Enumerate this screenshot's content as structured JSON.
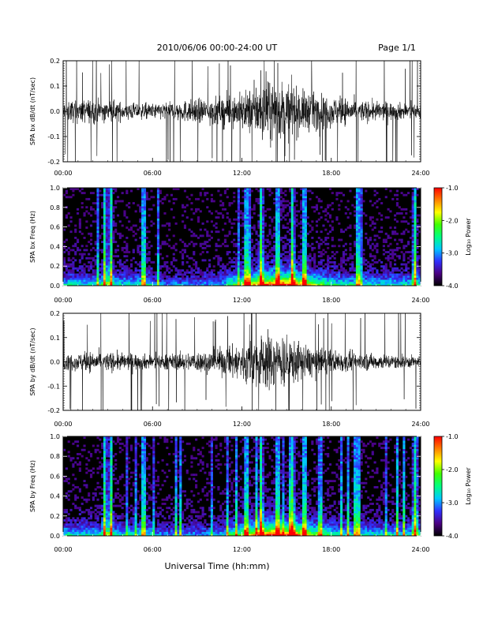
{
  "header": {
    "title": "2010/06/06  00:00-24:00 UT",
    "page": "Page 1/1"
  },
  "xaxis": {
    "label": "Universal Time (hh:mm)",
    "ticks": [
      "00:00",
      "06:00",
      "12:00",
      "18:00",
      "24:00"
    ],
    "range_hours": [
      0,
      24
    ]
  },
  "colorbar": {
    "label": "Log₁₀ Power",
    "ticks": [
      "-1.0",
      "-2.0",
      "-3.0",
      "-4.0"
    ],
    "range": [
      -4.0,
      -1.0
    ],
    "colors": [
      "#000000",
      "#4b0082",
      "#3030ff",
      "#00c8ff",
      "#00ff80",
      "#40ff00",
      "#ffff00",
      "#ff8000",
      "#ff0000"
    ]
  },
  "chart_data": [
    {
      "type": "line",
      "name": "panel-bx-dbdt",
      "ylabel": "SPA bx dB/dt (nT/sec)",
      "ylim": [
        -0.2,
        0.2
      ],
      "yticks": [
        "-0.2",
        "-0.1",
        "0.0",
        "0.1",
        "0.2"
      ],
      "series_color": "#000000",
      "envelope_hours": [
        0,
        2,
        4,
        6,
        8,
        10,
        12,
        13,
        14,
        15,
        16,
        18,
        20,
        22,
        24
      ],
      "envelope_amplitude": [
        0.07,
        0.08,
        0.06,
        0.05,
        0.07,
        0.09,
        0.12,
        0.18,
        0.2,
        0.19,
        0.14,
        0.1,
        0.07,
        0.06,
        0.05
      ]
    },
    {
      "type": "heatmap",
      "name": "panel-bx-freq",
      "ylabel": "SPA bx Freq (Hz)",
      "ylim": [
        0.0,
        1.0
      ],
      "yticks": [
        "0.0",
        "0.2",
        "0.4",
        "0.6",
        "0.8",
        "1.0"
      ],
      "zlim": [
        -4.0,
        -1.0
      ],
      "bright_bands_hours": [
        2.8,
        3.2,
        5.4,
        12.3,
        13.3,
        14.4,
        15.4,
        16.2,
        19.8,
        23.6
      ]
    },
    {
      "type": "line",
      "name": "panel-by-dbdt",
      "ylabel": "SPA by dB/dt (nT/sec)",
      "ylim": [
        -0.2,
        0.2
      ],
      "yticks": [
        "-0.2",
        "-0.1",
        "0.0",
        "0.1",
        "0.2"
      ],
      "series_color": "#000000",
      "envelope_hours": [
        0,
        2,
        4,
        6,
        8,
        10,
        12,
        13,
        14,
        15,
        16,
        18,
        20,
        22,
        24
      ],
      "envelope_amplitude": [
        0.05,
        0.07,
        0.06,
        0.05,
        0.06,
        0.08,
        0.13,
        0.19,
        0.2,
        0.18,
        0.12,
        0.08,
        0.06,
        0.05,
        0.04
      ]
    },
    {
      "type": "heatmap",
      "name": "panel-by-freq",
      "ylabel": "SPA by Freq (Hz)",
      "ylim": [
        0.0,
        1.0
      ],
      "yticks": [
        "0.0",
        "0.2",
        "0.4",
        "0.6",
        "0.8",
        "1.0"
      ],
      "zlim": [
        -4.0,
        -1.0
      ],
      "bright_bands_hours": [
        2.8,
        3.2,
        5.4,
        12.3,
        13.3,
        14.4,
        15.4,
        16.2,
        19.8,
        23.6
      ]
    }
  ]
}
